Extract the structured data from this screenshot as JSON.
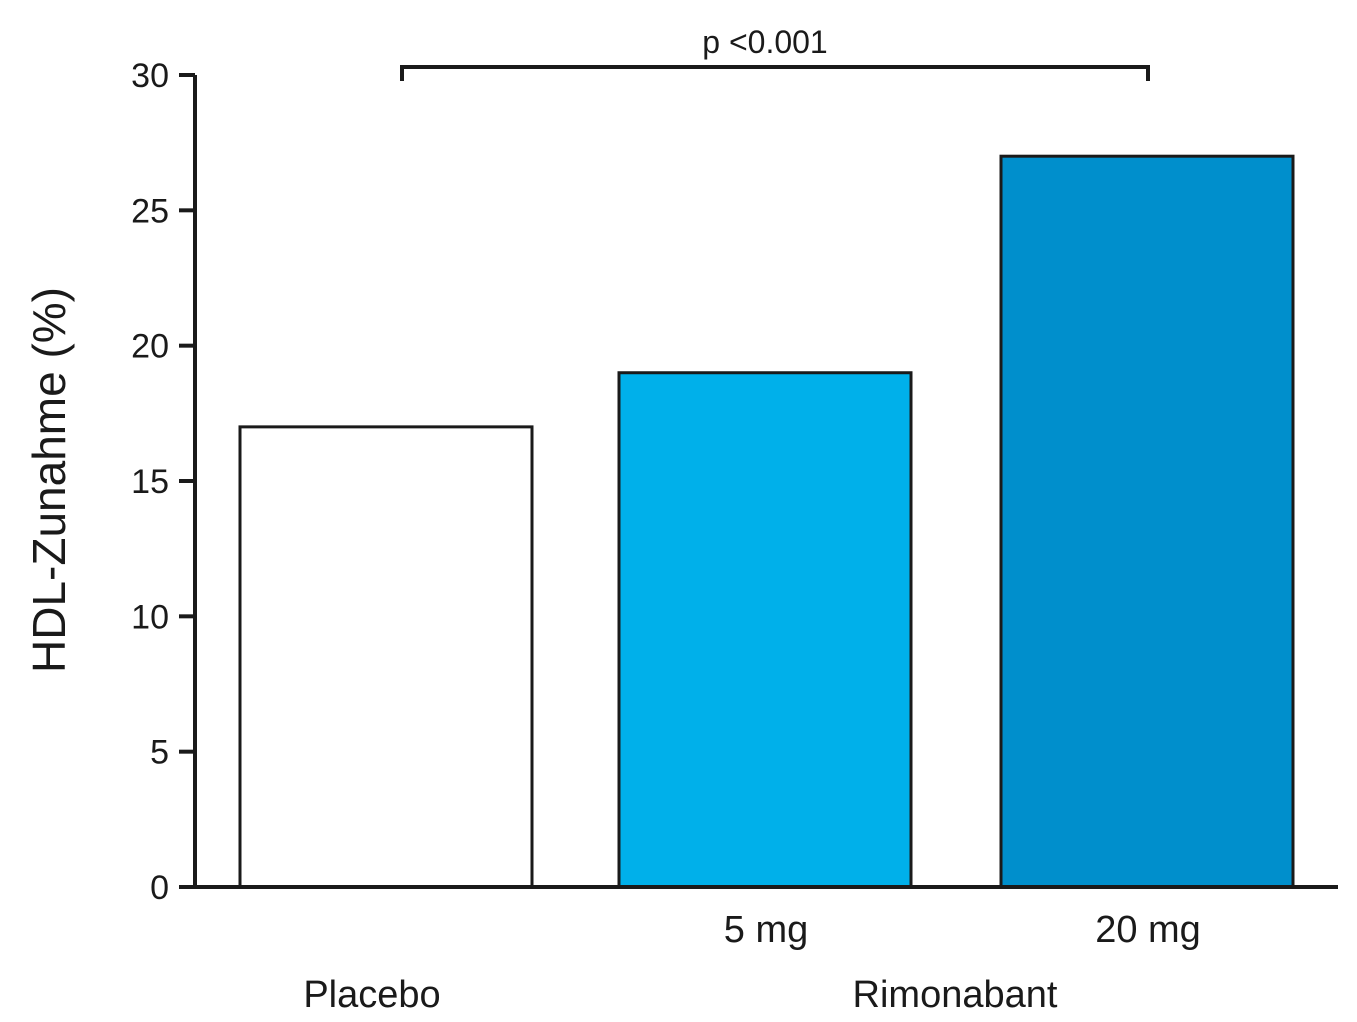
{
  "chart_data": {
    "type": "bar",
    "categories": [
      "Placebo",
      "5 mg",
      "20 mg"
    ],
    "values": [
      17,
      19,
      27
    ],
    "bar_colors": [
      "#ffffff",
      "#00b0ea",
      "#008fcc"
    ],
    "group_label": "Rimonabant",
    "ylabel": "HDL-Zunahme (%)",
    "ylim": [
      0,
      30
    ],
    "yticks": [
      0,
      5,
      10,
      15,
      20,
      25,
      30
    ],
    "grid": false,
    "legend": "none",
    "annotation": {
      "text": "p <0.001",
      "from_category": "Placebo",
      "to_category": "20 mg"
    }
  }
}
